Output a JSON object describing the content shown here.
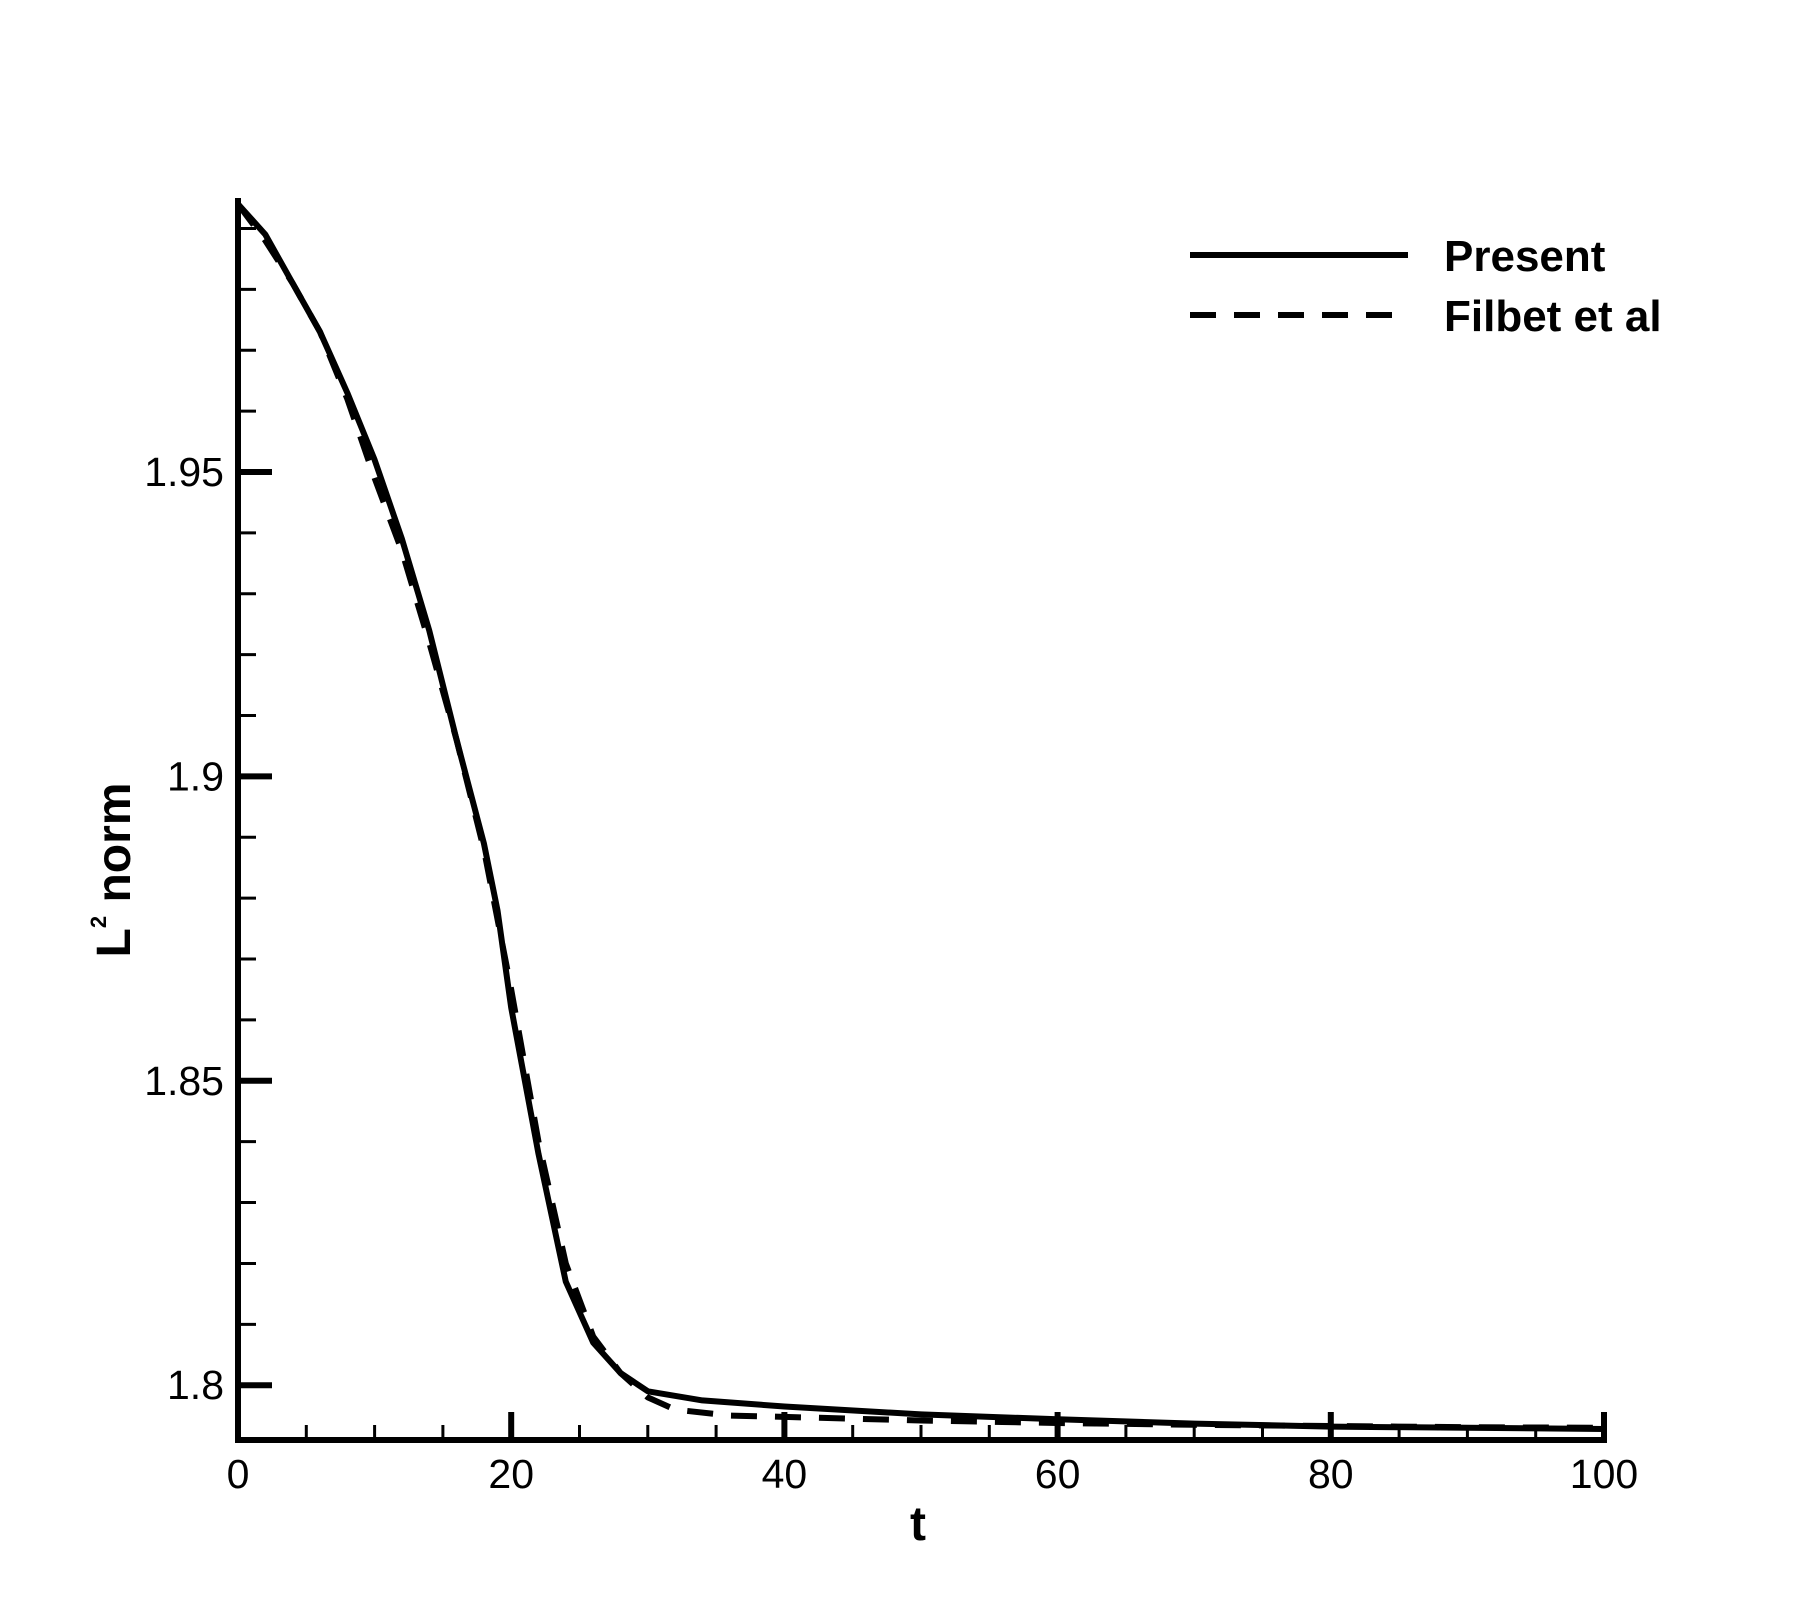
{
  "chart_data": {
    "type": "line",
    "title": "",
    "xlabel": "t",
    "ylabel": {
      "base": "L",
      "sup": "2",
      "rest": " norm"
    },
    "xlim": [
      0,
      100
    ],
    "ylim": [
      1.791,
      1.995
    ],
    "x_ticks": [
      0,
      20,
      40,
      60,
      80,
      100
    ],
    "x_tick_labels": [
      "0",
      "20",
      "40",
      "60",
      "80",
      "100"
    ],
    "y_ticks": [
      1.8,
      1.85,
      1.9,
      1.95
    ],
    "y_tick_labels": [
      "1.8",
      "1.85",
      "1.9",
      "1.95"
    ],
    "grid": false,
    "legend_position": "top-right",
    "series": [
      {
        "name": "Present",
        "style": "solid",
        "color": "#000000",
        "x": [
          0,
          2,
          4,
          6,
          8,
          10,
          12,
          14,
          16,
          18,
          19,
          20,
          22,
          24,
          26,
          28,
          30,
          34,
          40,
          50,
          60,
          70,
          80,
          90,
          100
        ],
        "y": [
          1.994,
          1.989,
          1.981,
          1.973,
          1.963,
          1.952,
          1.939,
          1.924,
          1.906,
          1.889,
          1.878,
          1.862,
          1.838,
          1.817,
          1.807,
          1.802,
          1.799,
          1.7975,
          1.7965,
          1.7952,
          1.7944,
          1.7937,
          1.7932,
          1.793,
          1.7928
        ]
      },
      {
        "name": "Filbet et al",
        "style": "dashed",
        "color": "#000000",
        "x": [
          0,
          2,
          4,
          6,
          8,
          10,
          12,
          14,
          16,
          18,
          20,
          22,
          24,
          26,
          28,
          30,
          32,
          36,
          40,
          50,
          60,
          70,
          80,
          90,
          100
        ],
        "y": [
          1.994,
          1.988,
          1.981,
          1.973,
          1.962,
          1.949,
          1.937,
          1.922,
          1.906,
          1.888,
          1.865,
          1.84,
          1.82,
          1.808,
          1.802,
          1.798,
          1.796,
          1.795,
          1.7948,
          1.7942,
          1.7938,
          1.7935,
          1.7933,
          1.7931,
          1.793
        ]
      }
    ]
  }
}
